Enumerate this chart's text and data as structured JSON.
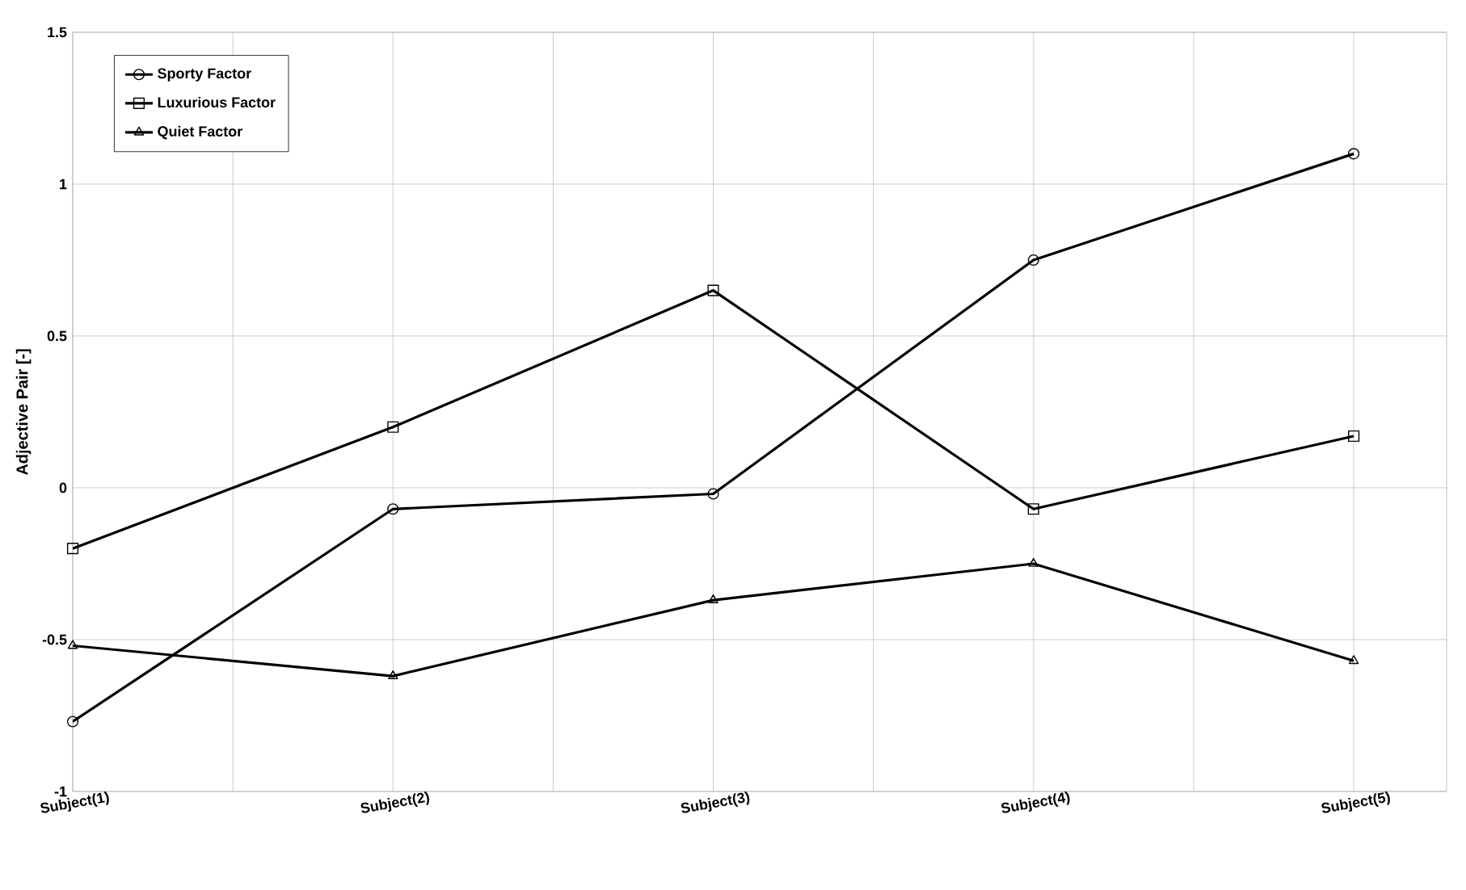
{
  "chart_data": {
    "type": "line",
    "ylabel": "Adjective Pair [-]",
    "categories": [
      "Subject(1)",
      "Subject(2)",
      "Subject(3)",
      "Subject(4)",
      "Subject(5)"
    ],
    "series": [
      {
        "name": "Sporty Factor",
        "color": "#000000",
        "marker": "circle",
        "values": [
          -0.77,
          -0.07,
          -0.02,
          0.75,
          1.1
        ]
      },
      {
        "name": "Luxurious Factor",
        "color": "#000000",
        "marker": "square",
        "values": [
          -0.2,
          0.2,
          0.65,
          -0.07,
          0.17
        ]
      },
      {
        "name": "Quiet Factor",
        "color": "#000000",
        "marker": "triangle",
        "values": [
          -0.52,
          -0.62,
          -0.37,
          -0.25,
          -0.57
        ]
      }
    ],
    "ylim": [
      -1,
      1.5
    ],
    "yticks": [
      -1,
      -0.5,
      0,
      0.5,
      1,
      1.5
    ],
    "grid": true,
    "legend": "top left",
    "line_style": "solid"
  }
}
